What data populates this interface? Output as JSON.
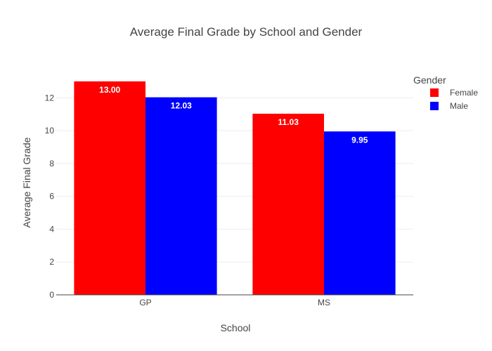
{
  "chart_data": {
    "type": "bar",
    "title": "Average Final Grade by School and Gender",
    "xlabel": "School",
    "ylabel": "Average Final Grade",
    "categories": [
      "GP",
      "MS"
    ],
    "series": [
      {
        "name": "Female",
        "values": [
          13.0,
          11.03
        ],
        "labels": [
          "13.00",
          "11.03"
        ],
        "color": "#ff0000"
      },
      {
        "name": "Male",
        "values": [
          12.03,
          9.95
        ],
        "labels": [
          "12.03",
          "9.95"
        ],
        "color": "#0000ff"
      }
    ],
    "ylim": [
      0,
      13.68
    ],
    "yticks": [
      0,
      2,
      4,
      6,
      8,
      10,
      12
    ],
    "grid": true,
    "legend": {
      "title": "Gender",
      "placement": "top-right"
    }
  }
}
